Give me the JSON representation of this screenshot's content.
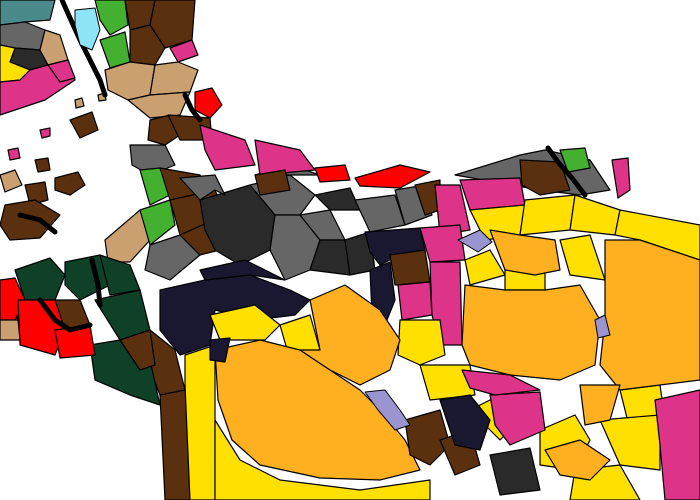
{
  "map": {
    "type": "political-region-map",
    "labels": [],
    "palette": {
      "sea": "#ffffff",
      "outline": "#000000",
      "water": "#8fe3f7",
      "lake": "#9a94d0",
      "yellow": "#ffe000",
      "orange": "#ffb020",
      "brown": "#5a300e",
      "dark_gray": "#2a2a2a",
      "gray": "#666666",
      "navy": "#1a1830",
      "pink": "#dd3388",
      "red": "#ff0000",
      "green": "#44b030",
      "dark_green": "#0f4028",
      "tan": "#caa070",
      "teal": "#4a8a8a"
    }
  }
}
